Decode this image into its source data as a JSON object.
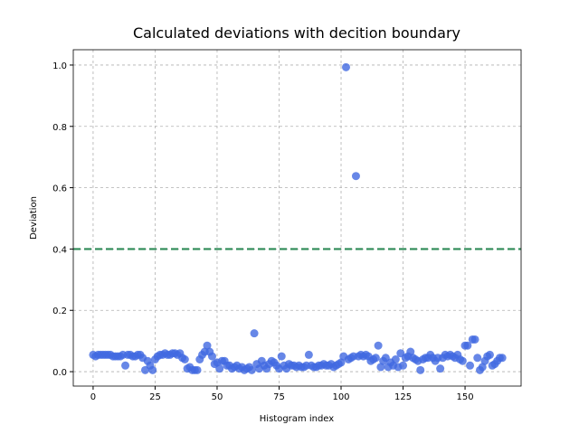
{
  "chart_data": {
    "type": "scatter",
    "title": "Calculated deviations with decition boundary",
    "x_label": "Histogram index",
    "y_label": "Deviation",
    "x": [
      0,
      1,
      2,
      3,
      4,
      5,
      6,
      7,
      8,
      9,
      10,
      11,
      12,
      13,
      14,
      15,
      16,
      17,
      18,
      19,
      20,
      21,
      22,
      23,
      24,
      25,
      26,
      27,
      28,
      29,
      30,
      31,
      32,
      33,
      34,
      35,
      36,
      37,
      38,
      39,
      40,
      41,
      42,
      43,
      44,
      45,
      46,
      47,
      48,
      49,
      50,
      51,
      52,
      53,
      54,
      55,
      56,
      57,
      58,
      59,
      60,
      61,
      62,
      63,
      64,
      65,
      66,
      67,
      68,
      69,
      70,
      71,
      72,
      73,
      74,
      75,
      76,
      77,
      78,
      79,
      80,
      81,
      82,
      83,
      84,
      85,
      86,
      87,
      88,
      89,
      90,
      91,
      92,
      93,
      94,
      95,
      96,
      97,
      98,
      99,
      100,
      101,
      102,
      103,
      104,
      105,
      106,
      107,
      108,
      109,
      110,
      111,
      112,
      113,
      114,
      115,
      116,
      117,
      118,
      119,
      120,
      121,
      122,
      123,
      124,
      125,
      126,
      127,
      128,
      129,
      130,
      131,
      132,
      133,
      134,
      135,
      136,
      137,
      138,
      139,
      140,
      141,
      142,
      143,
      144,
      145,
      146,
      147,
      148,
      149,
      150,
      151,
      152,
      153,
      154,
      155,
      156,
      157,
      158,
      159,
      160,
      161,
      162,
      163,
      164,
      165
    ],
    "series": [
      {
        "color": "#4169e1",
        "values": [
          0.055,
          0.05,
          0.055,
          0.055,
          0.055,
          0.055,
          0.055,
          0.055,
          0.05,
          0.05,
          0.05,
          0.05,
          0.055,
          0.02,
          0.055,
          0.055,
          0.05,
          0.05,
          0.055,
          0.055,
          0.045,
          0.005,
          0.035,
          0.02,
          0.005,
          0.04,
          0.05,
          0.055,
          0.055,
          0.06,
          0.055,
          0.055,
          0.06,
          0.06,
          0.055,
          0.06,
          0.045,
          0.04,
          0.01,
          0.015,
          0.005,
          0.005,
          0.005,
          0.04,
          0.055,
          0.065,
          0.085,
          0.065,
          0.05,
          0.025,
          0.03,
          0.01,
          0.035,
          0.035,
          0.02,
          0.02,
          0.01,
          0.015,
          0.02,
          0.01,
          0.015,
          0.005,
          0.01,
          0.015,
          0.005,
          0.125,
          0.025,
          0.01,
          0.035,
          0.02,
          0.01,
          0.025,
          0.035,
          0.03,
          0.02,
          0.01,
          0.05,
          0.02,
          0.01,
          0.025,
          0.02,
          0.02,
          0.015,
          0.02,
          0.015,
          0.015,
          0.02,
          0.055,
          0.02,
          0.015,
          0.015,
          0.02,
          0.02,
          0.025,
          0.02,
          0.02,
          0.025,
          0.015,
          0.02,
          0.025,
          0.03,
          0.05,
          0.993,
          0.04,
          0.045,
          0.05,
          0.638,
          0.05,
          0.055,
          0.05,
          0.055,
          0.05,
          0.035,
          0.04,
          0.045,
          0.085,
          0.015,
          0.035,
          0.045,
          0.015,
          0.03,
          0.02,
          0.04,
          0.015,
          0.06,
          0.02,
          0.045,
          0.05,
          0.065,
          0.045,
          0.04,
          0.035,
          0.005,
          0.04,
          0.045,
          0.045,
          0.055,
          0.045,
          0.035,
          0.045,
          0.01,
          0.045,
          0.055,
          0.05,
          0.055,
          0.05,
          0.045,
          0.055,
          0.04,
          0.035,
          0.085,
          0.085,
          0.02,
          0.105,
          0.105,
          0.045,
          0.005,
          0.015,
          0.035,
          0.05,
          0.055,
          0.02,
          0.025,
          0.035,
          0.045,
          0.045
        ]
      }
    ],
    "boundary": {
      "value": 0.4,
      "color": "#2e8b57"
    },
    "xlim": [
      -8,
      172.6
    ],
    "ylim": [
      -0.047,
      1.05
    ],
    "xticks": [
      0,
      25,
      50,
      75,
      100,
      125,
      150
    ],
    "yticks": [
      {
        "value": 0,
        "label": "0.0"
      },
      {
        "value": 0.2,
        "label": "0.2"
      },
      {
        "value": 0.4,
        "label": "0.4"
      },
      {
        "value": 0.6,
        "label": "0.6"
      },
      {
        "value": 0.8,
        "label": "0.8"
      },
      {
        "value": 1,
        "label": "1.0"
      }
    ],
    "grid": true
  }
}
